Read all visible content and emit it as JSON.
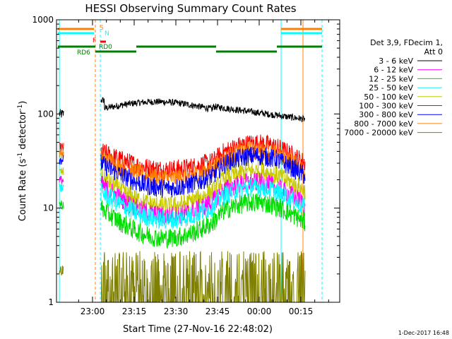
{
  "chart_data": {
    "type": "line",
    "title": "HESSI Observing Summary Count Rates",
    "xlabel": "Start Time (27-Nov-16 22:48:02)",
    "ylabel_main": "Count Rate (s",
    "ylabel_sup1": "-1",
    "ylabel_mid": " detector",
    "ylabel_sup2": "-1",
    "ylabel_end": ")",
    "y_scale": "log",
    "ylim": [
      1,
      1000
    ],
    "y_ticks": [
      "1",
      "10",
      "100",
      "1000"
    ],
    "x_ticks": [
      "23:00",
      "23:15",
      "23:30",
      "23:45",
      "00:00",
      "00:15"
    ],
    "footer": "1-Dec-2017 16:48",
    "legend": {
      "header_line1": "Det 3,9, FDecim 1,",
      "header_line2": "Att 0",
      "entries": [
        {
          "label": "3 - 6 keV",
          "color": "#000000"
        },
        {
          "label": "6 - 12 keV",
          "color": "#ff00ff"
        },
        {
          "label": "12 - 25 keV",
          "color": "#00dd00"
        },
        {
          "label": "25 - 50 keV",
          "color": "#00ffff"
        },
        {
          "label": "50 - 100 keV",
          "color": "#c8c800"
        },
        {
          "label": "100 - 300 keV",
          "color": "#ff0000"
        },
        {
          "label": "300 - 800 keV",
          "color": "#0000ff"
        },
        {
          "label": "800 - 7000 keV",
          "color": "#ff8000"
        },
        {
          "label": "7000 - 20000 keV",
          "color": "#808000"
        }
      ]
    },
    "flags": [
      {
        "label": "S",
        "color": "#ff8000"
      },
      {
        "label": "N",
        "color": "#00ffff"
      },
      {
        "label": "F",
        "color": "#ff0000"
      },
      {
        "label": "RD0",
        "color": "#008000"
      },
      {
        "label": "RD6",
        "color": "#008000"
      }
    ],
    "series_levels": [
      {
        "name": "3 - 6 keV",
        "color": "#000000",
        "start": 100,
        "mid": 130,
        "end": 100
      },
      {
        "name": "100 - 300 keV",
        "color": "#ff0000",
        "start": 40,
        "mid": 27,
        "end": 30
      },
      {
        "name": "800 - 7000 keV",
        "color": "#ff8000",
        "start": 35,
        "mid": 22,
        "end": 25
      },
      {
        "name": "300 - 800 keV",
        "color": "#0000ff",
        "start": 30,
        "mid": 17,
        "end": 22
      },
      {
        "name": "50 - 100 keV",
        "color": "#c8c800",
        "start": 22,
        "mid": 11,
        "end": 15
      },
      {
        "name": "6 - 12 keV",
        "color": "#ff00ff",
        "start": 18,
        "mid": 9,
        "end": 11
      },
      {
        "name": "25 - 50 keV",
        "color": "#00ffff",
        "start": 15,
        "mid": 8,
        "end": 10
      },
      {
        "name": "12 - 25 keV",
        "color": "#00dd00",
        "start": 10,
        "mid": 5,
        "end": 7
      },
      {
        "name": "7000 - 20000 keV",
        "color": "#808000",
        "start": 2,
        "mid": 1.5,
        "end": 2
      }
    ]
  }
}
